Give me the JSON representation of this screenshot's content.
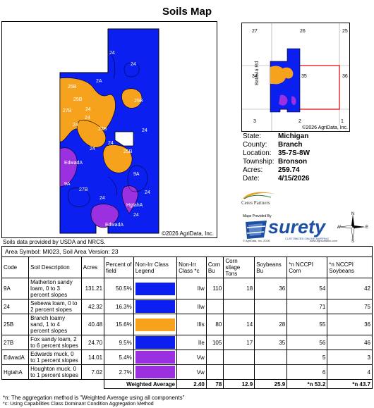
{
  "title": "Soils Map",
  "main_map": {
    "labels": [
      "24",
      "24",
      "25B",
      "2A",
      "25B",
      "27B",
      "24",
      "24",
      "27B",
      "25B",
      "24",
      "25B",
      "EdwadA",
      "9A",
      "27B",
      "9A",
      "24",
      "HgtahA",
      "24",
      "EdwadA",
      "24",
      "24",
      "24",
      "24"
    ],
    "copyright": "©2026 AgriData, Inc."
  },
  "locator_map": {
    "sections": [
      "27",
      "26",
      "25",
      "34",
      "35",
      "36",
      "3",
      "2",
      "1"
    ],
    "road": "Batavia Rd",
    "copyright": "©2026 AgriData, Inc."
  },
  "info": [
    {
      "label": "State:",
      "value": "Michigan"
    },
    {
      "label": "County:",
      "value": "Branch"
    },
    {
      "label": "Location:",
      "value": "35-7S-8W"
    },
    {
      "label": "Township:",
      "value": "Bronson"
    },
    {
      "label": "Acres:",
      "value": "259.74"
    },
    {
      "label": "Date:",
      "value": "4/15/2026"
    }
  ],
  "logos": {
    "ceres": "Ceres Partners",
    "maps_by": "Maps Provided By",
    "surety": "surety",
    "surety_sub": "CUSTOMIZED ONLINE MAPPING",
    "surety_foot_left": "© AgriData, Inc. 2026",
    "surety_foot_right": "www.AgriDataInc.com"
  },
  "compass": {
    "n": "N",
    "s": "S",
    "e": "E",
    "w": "W"
  },
  "credit": "Soils data provided by USDA and NRCS.",
  "table": {
    "area_symbol": "Area Symbol: MI023, Soil Area Version: 23",
    "headers": [
      "Code",
      "Soil Description",
      "Acres",
      "Percent of field",
      "Non-Irr Class Legend",
      "Non-Irr Class *c",
      "Corn Bu",
      "Corn silage Tons",
      "Soybeans Bu",
      "*n NCCPI Corn",
      "*n NCCPI Soybeans"
    ],
    "rows": [
      {
        "code": "9A",
        "desc": "Matherton sandy loam, 0 to 3 percent slopes",
        "acres": "131.21",
        "pct": "50.5%",
        "color": "#0a1ff0",
        "cls": "IIw",
        "corn": "110",
        "silage": "18",
        "soy": "36",
        "ncorn": "54",
        "nsoy": "42"
      },
      {
        "code": "24",
        "desc": "Sebewa loam, 0 to 2 percent slopes",
        "acres": "42.32",
        "pct": "16.3%",
        "color": "#0a1ff0",
        "cls": "IIw",
        "corn": "",
        "silage": "",
        "soy": "",
        "ncorn": "71",
        "nsoy": "75"
      },
      {
        "code": "25B",
        "desc": "Branch loamy sand, 1 to 4 percent slopes",
        "acres": "40.48",
        "pct": "15.6%",
        "color": "#f7a21c",
        "cls": "IIIs",
        "corn": "80",
        "silage": "14",
        "soy": "28",
        "ncorn": "55",
        "nsoy": "36"
      },
      {
        "code": "27B",
        "desc": "Fox sandy loam, 2 to 6 percent slopes",
        "acres": "24.70",
        "pct": "9.5%",
        "color": "#0a1ff0",
        "cls": "IIe",
        "corn": "105",
        "silage": "17",
        "soy": "35",
        "ncorn": "56",
        "nsoy": "46"
      },
      {
        "code": "EdwadA",
        "desc": "Edwards muck, 0 to 1 percent slopes",
        "acres": "14.01",
        "pct": "5.4%",
        "color": "#9b30e0",
        "cls": "Vw",
        "corn": "",
        "silage": "",
        "soy": "",
        "ncorn": "5",
        "nsoy": "3"
      },
      {
        "code": "HgtahA",
        "desc": "Houghton muck, 0 to 1 percent slopes",
        "acres": "7.02",
        "pct": "2.7%",
        "color": "#9b30e0",
        "cls": "Vw",
        "corn": "",
        "silage": "",
        "soy": "",
        "ncorn": "6",
        "nsoy": "4"
      }
    ],
    "weighted": {
      "label": "Weighted Average",
      "cls": "2.40",
      "corn": "78",
      "silage": "12.9",
      "soy": "25.9",
      "ncorn": "*n 53.2",
      "nsoy": "*n 43.7"
    }
  },
  "footnotes": [
    "*n: The aggregation method is \"Weighted Average using all components\"",
    "*c: Using Capabilities Class Dominant Condition Aggregation Method"
  ]
}
